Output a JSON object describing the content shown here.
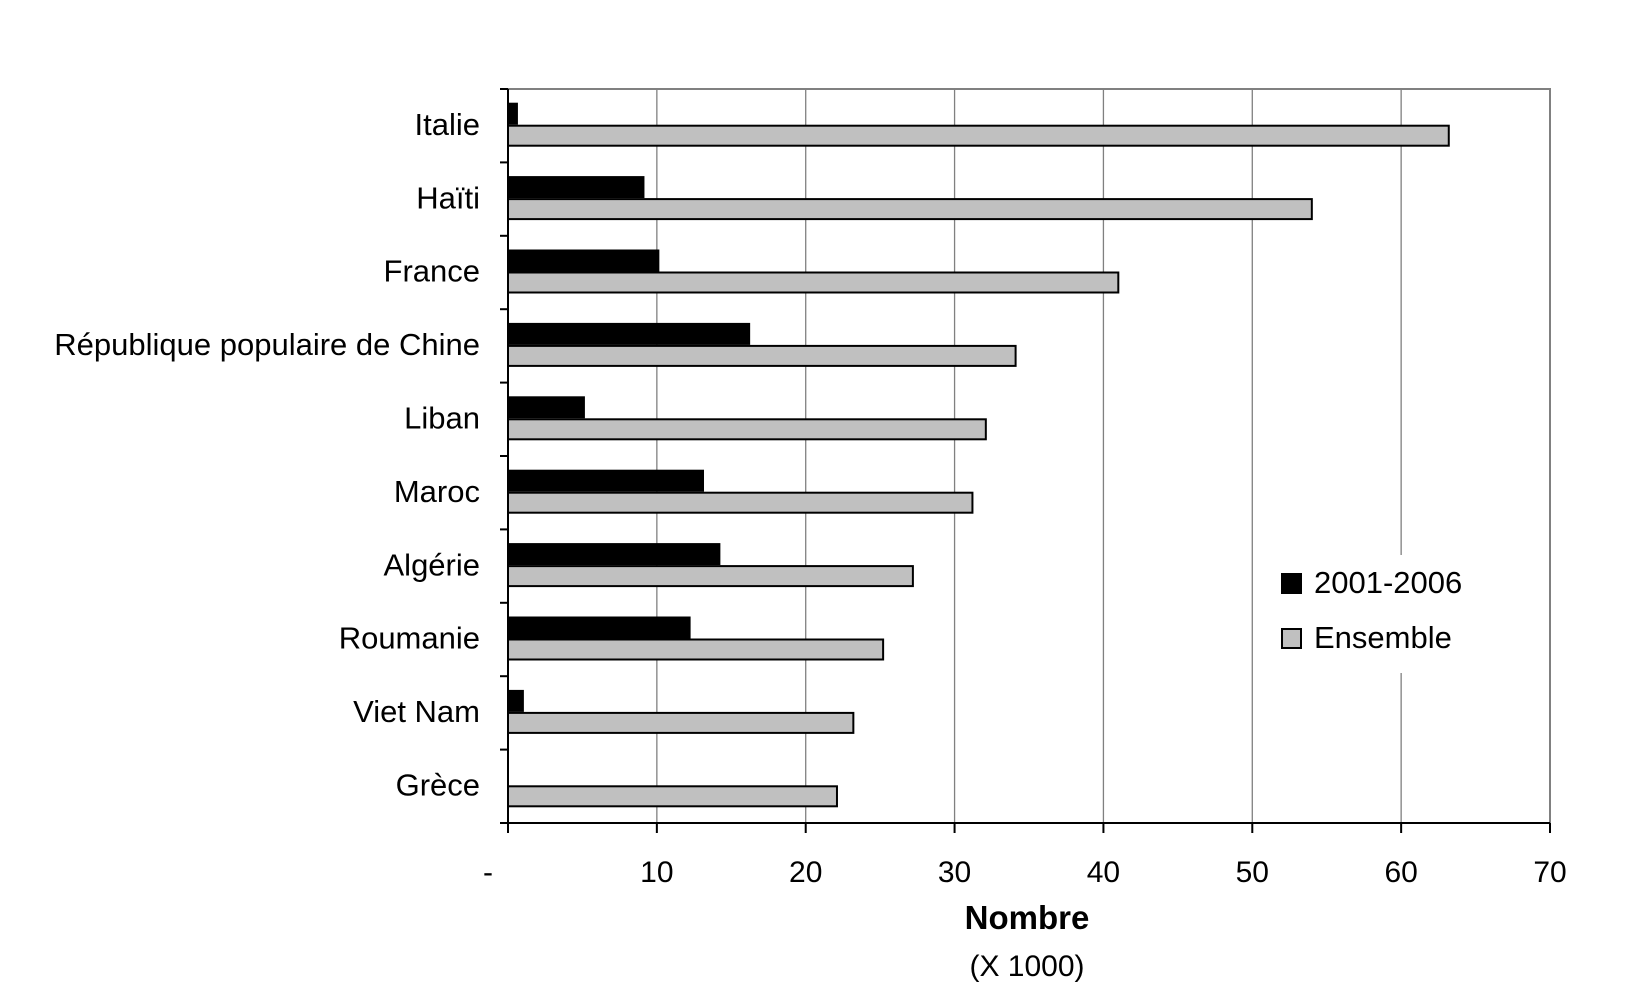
{
  "chart_data": {
    "type": "bar",
    "orientation": "horizontal",
    "categories": [
      "Italie",
      "Haïti",
      "France",
      "République populaire de Chine",
      "Liban",
      "Maroc",
      "Algérie",
      "Roumanie",
      "Viet Nam",
      "Grèce"
    ],
    "series": [
      {
        "name": "2001-2006",
        "color": "#000000",
        "values": [
          0.6,
          9.1,
          10.1,
          16.2,
          5.1,
          13.1,
          14.2,
          12.2,
          1.0,
          0
        ]
      },
      {
        "name": "Ensemble",
        "color": "#c0c0c0",
        "values": [
          63.2,
          54.0,
          41.0,
          34.1,
          32.1,
          31.2,
          27.2,
          25.2,
          23.2,
          22.1
        ]
      }
    ],
    "xlim": [
      0,
      70
    ],
    "xticks": [
      0,
      10,
      20,
      30,
      40,
      50,
      60,
      70
    ],
    "xtick_labels": [
      "-",
      "10",
      "20",
      "30",
      "40",
      "50",
      "60",
      "70"
    ],
    "xlabel": "Nombre",
    "xlabel_sub": "(X 1000)",
    "grid": "vertical",
    "legend_position": "right"
  }
}
